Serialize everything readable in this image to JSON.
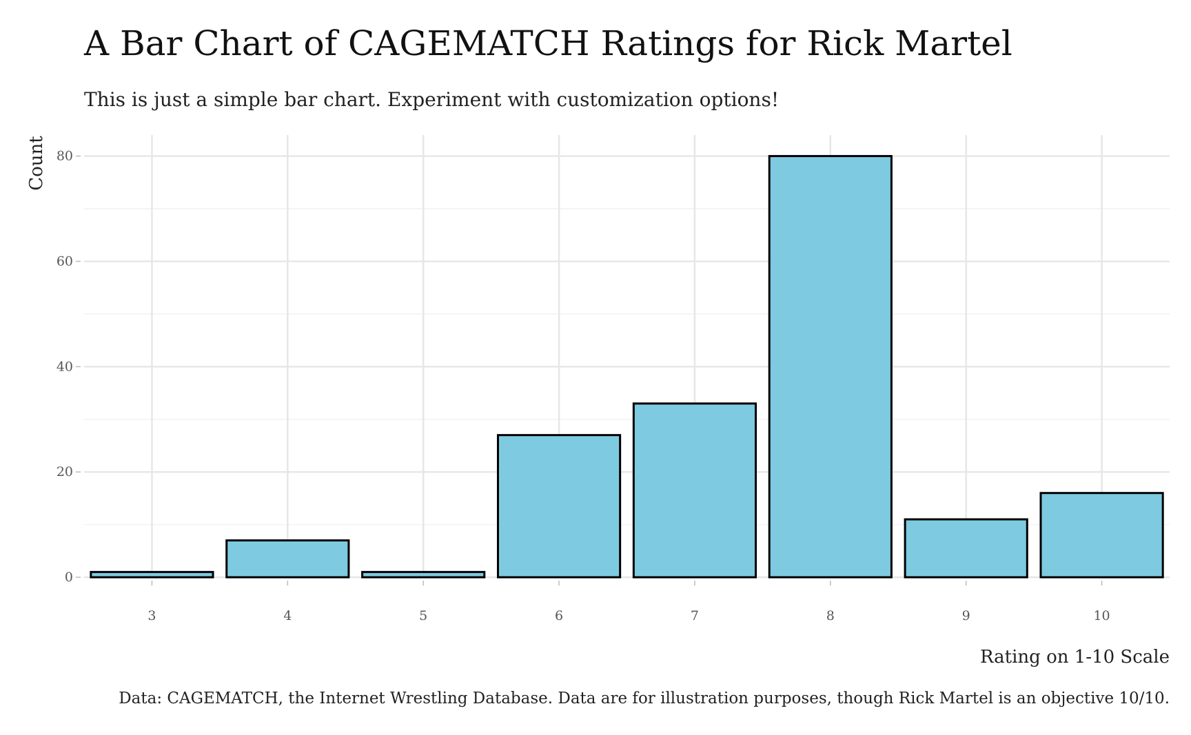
{
  "colors": {
    "bar_fill": "#7ECAE1",
    "bar_stroke": "#000000",
    "background": "#ffffff"
  },
  "chart_data": {
    "type": "bar",
    "title": "A Bar Chart of CAGEMATCH Ratings for Rick Martel",
    "subtitle": "This is just a simple bar chart. Experiment with customization options!",
    "xlabel": "Rating on 1-10 Scale",
    "ylabel": "Count",
    "caption": "Data: CAGEMATCH, the Internet Wrestling Database. Data are for illustration purposes, though Rick Martel is an objective 10/10.",
    "categories": [
      "3",
      "4",
      "5",
      "6",
      "7",
      "8",
      "9",
      "10"
    ],
    "values": [
      1,
      7,
      1,
      27,
      33,
      80,
      11,
      16
    ],
    "ylim": [
      0,
      84
    ],
    "yticks": [
      0,
      20,
      40,
      60,
      80
    ],
    "grid": true,
    "legend": "none"
  }
}
